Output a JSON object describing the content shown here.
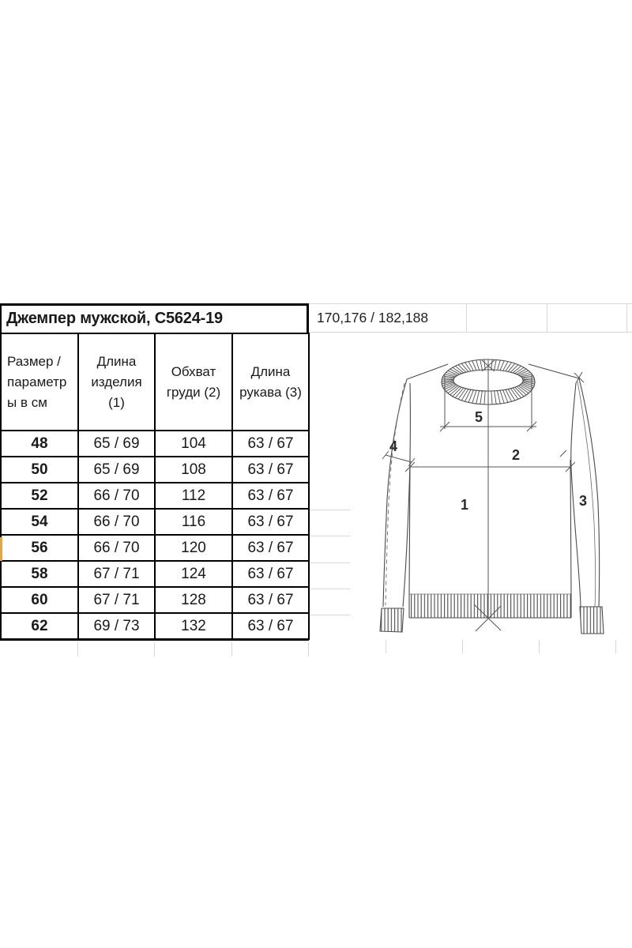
{
  "sheet": {
    "title": "Джемпер мужской, С5624-19",
    "height_range": "170,176 / 182,188"
  },
  "size_table": {
    "columns": [
      "Размер / параметры в см",
      "Длина изделия (1)",
      "Обхват груди (2)",
      "Длина рукава (3)"
    ],
    "rows": [
      [
        "48",
        "65 / 69",
        "104",
        "63 / 67"
      ],
      [
        "50",
        "65 / 69",
        "108",
        "63 / 67"
      ],
      [
        "52",
        "66 / 70",
        "112",
        "63 / 67"
      ],
      [
        "54",
        "66 / 70",
        "116",
        "63 / 67"
      ],
      [
        "56",
        "66 / 70",
        "120",
        "63 / 67"
      ],
      [
        "58",
        "67 / 71",
        "124",
        "63 / 67"
      ],
      [
        "60",
        "67 / 71",
        "128",
        "63 / 67"
      ],
      [
        "62",
        "69 / 73",
        "132",
        "63 / 67"
      ]
    ]
  },
  "diagram": {
    "labels": {
      "body": "1",
      "chest": "2",
      "sleeve": "3",
      "sleeve_width": "4",
      "neck": "5"
    }
  },
  "colors": {
    "active_row_marker": "#dfa44c",
    "table_border": "#000000",
    "gridline": "#d7d7d7",
    "drawing_line": "#4a4a4a"
  }
}
